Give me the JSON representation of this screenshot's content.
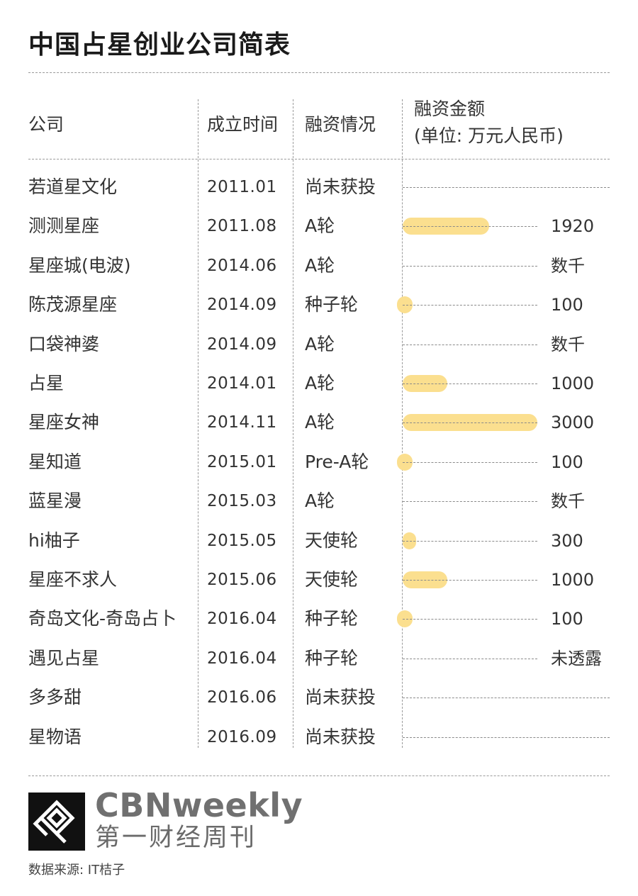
{
  "title": "中国占星创业公司简表",
  "header": {
    "company": "公司",
    "founded": "成立时间",
    "funding": "融资情况",
    "amount_line1": "融资金额",
    "amount_line2": "(单位: 万元人民币)"
  },
  "chart_data": {
    "type": "bar",
    "orientation": "horizontal",
    "title": "中国占星创业公司简表",
    "unit": "万元人民币",
    "max_value": 3000,
    "columns": [
      "公司",
      "成立时间",
      "融资情况",
      "融资金额"
    ],
    "rows": [
      {
        "company": "若道星文化",
        "founded": "2011.01",
        "round": "尚未获投",
        "value": null,
        "label": ""
      },
      {
        "company": "测测星座",
        "founded": "2011.08",
        "round": "A轮",
        "value": 1920,
        "label": "1920"
      },
      {
        "company": "星座城(电波)",
        "founded": "2014.06",
        "round": "A轮",
        "value": null,
        "label": "数千"
      },
      {
        "company": "陈茂源星座",
        "founded": "2014.09",
        "round": "种子轮",
        "value": 100,
        "label": "100"
      },
      {
        "company": "口袋神婆",
        "founded": "2014.09",
        "round": "A轮",
        "value": null,
        "label": "数千"
      },
      {
        "company": "占星",
        "founded": "2014.01",
        "round": "A轮",
        "value": 1000,
        "label": "1000"
      },
      {
        "company": "星座女神",
        "founded": "2014.11",
        "round": "A轮",
        "value": 3000,
        "label": "3000"
      },
      {
        "company": "星知道",
        "founded": "2015.01",
        "round": "Pre-A轮",
        "value": 100,
        "label": "100"
      },
      {
        "company": "蓝星漫",
        "founded": "2015.03",
        "round": "A轮",
        "value": null,
        "label": "数千"
      },
      {
        "company": "hi柚子",
        "founded": "2015.05",
        "round": "天使轮",
        "value": 300,
        "label": "300"
      },
      {
        "company": "星座不求人",
        "founded": "2015.06",
        "round": "天使轮",
        "value": 1000,
        "label": "1000"
      },
      {
        "company": "奇岛文化-奇岛占卜",
        "founded": "2016.04",
        "round": "种子轮",
        "value": 100,
        "label": "100"
      },
      {
        "company": "遇见占星",
        "founded": "2016.04",
        "round": "种子轮",
        "value": null,
        "label": "未透露"
      },
      {
        "company": "多多甜",
        "founded": "2016.06",
        "round": "尚未获投",
        "value": null,
        "label": ""
      },
      {
        "company": "星物语",
        "founded": "2016.09",
        "round": "尚未获投",
        "value": null,
        "label": ""
      }
    ]
  },
  "colors": {
    "bar": "#fbdf8f",
    "text": "#333333",
    "divider": "#9a9a9a",
    "logo": "#111111"
  },
  "brand": {
    "name_en": "CBNweekly",
    "name_cn": "第一财经周刊",
    "logo_icon": "cbn-logo-icon"
  },
  "source": "数据来源: IT桔子"
}
